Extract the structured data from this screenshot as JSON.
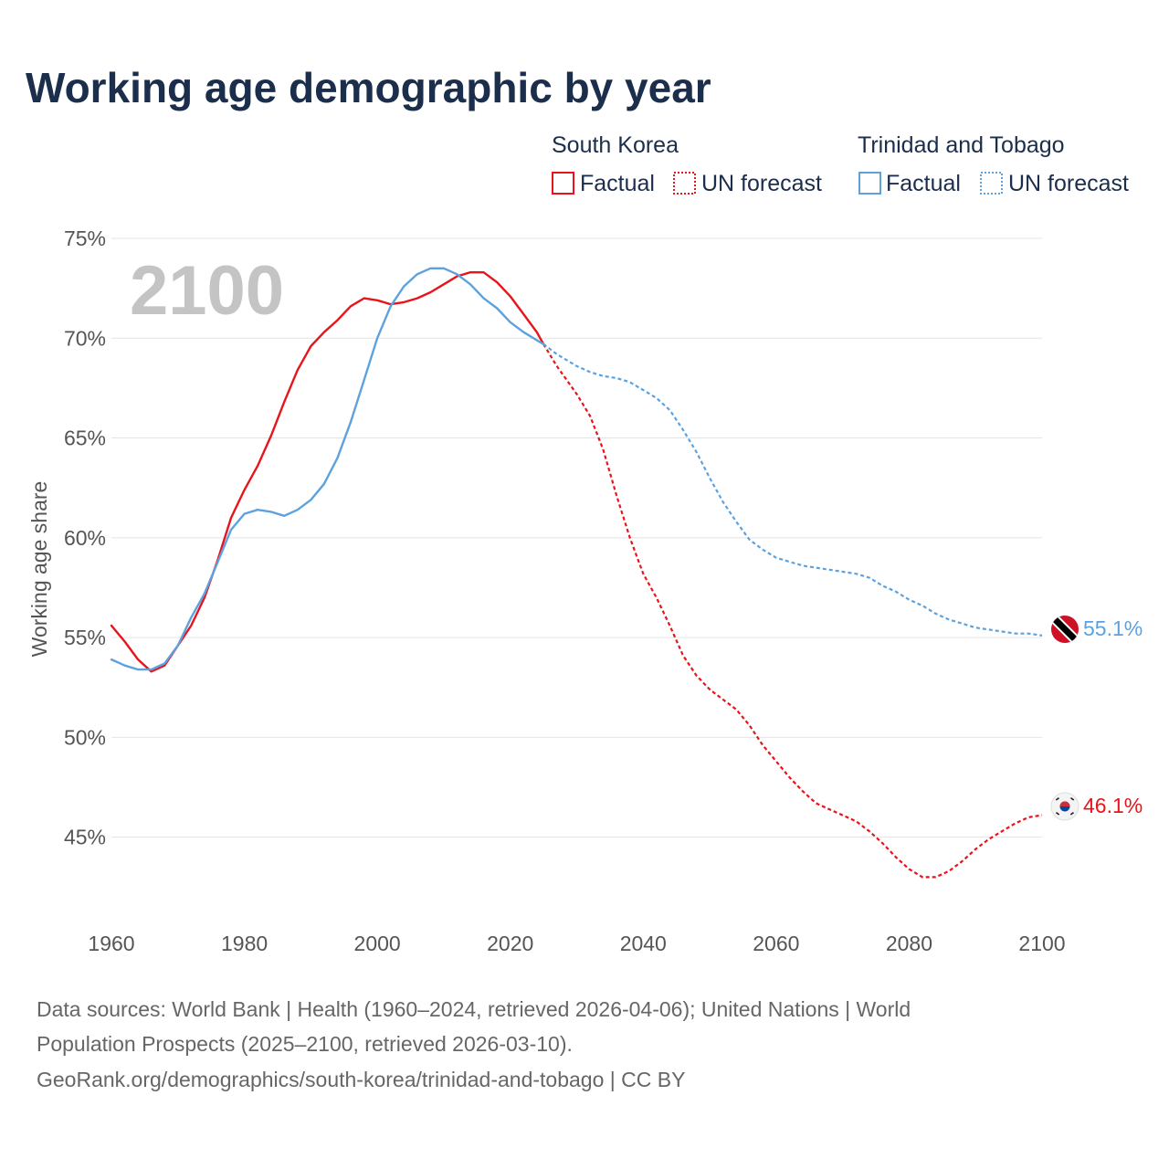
{
  "title": "Working age demographic by year",
  "watermark_year": "2100",
  "legend": {
    "groups": [
      {
        "name": "South Korea",
        "color": "#e8141b",
        "items": [
          "Factual",
          "UN forecast"
        ]
      },
      {
        "name": "Trinidad and Tobago",
        "color": "#5da2df",
        "items": [
          "Factual",
          "UN forecast"
        ]
      }
    ]
  },
  "end_labels": {
    "trinidad": "55.1%",
    "korea": "46.1%"
  },
  "footer": {
    "line1": "Data sources: World Bank | Health (1960–2024, retrieved 2026-04-06); United Nations | World",
    "line2": "Population Prospects (2025–2100, retrieved 2026-03-10).",
    "line3": "GeoRank.org/demographics/south-korea/trinidad-and-tobago | CC BY"
  },
  "chart_data": {
    "type": "line",
    "title": "Working age demographic by year",
    "xlabel": "",
    "ylabel": "Working age share",
    "xlim": [
      1960,
      2100
    ],
    "ylim": [
      40.5,
      75
    ],
    "x_ticks": [
      1960,
      1980,
      2000,
      2020,
      2040,
      2060,
      2080,
      2100
    ],
    "y_ticks": [
      45,
      50,
      55,
      60,
      65,
      70,
      75
    ],
    "y_tick_labels": [
      "45%",
      "50%",
      "55%",
      "60%",
      "65%",
      "70%",
      "75%"
    ],
    "factual_end_year": 2025,
    "series": [
      {
        "name": "South Korea",
        "color": "#e8141b",
        "points": [
          [
            1960,
            55.6
          ],
          [
            1962,
            54.8
          ],
          [
            1964,
            53.9
          ],
          [
            1966,
            53.3
          ],
          [
            1968,
            53.6
          ],
          [
            1970,
            54.6
          ],
          [
            1972,
            55.6
          ],
          [
            1974,
            57.0
          ],
          [
            1976,
            58.9
          ],
          [
            1978,
            61.0
          ],
          [
            1980,
            62.4
          ],
          [
            1982,
            63.6
          ],
          [
            1984,
            65.1
          ],
          [
            1986,
            66.8
          ],
          [
            1988,
            68.4
          ],
          [
            1990,
            69.6
          ],
          [
            1992,
            70.3
          ],
          [
            1994,
            70.9
          ],
          [
            1996,
            71.6
          ],
          [
            1998,
            72.0
          ],
          [
            2000,
            71.9
          ],
          [
            2002,
            71.7
          ],
          [
            2004,
            71.8
          ],
          [
            2006,
            72.0
          ],
          [
            2008,
            72.3
          ],
          [
            2010,
            72.7
          ],
          [
            2012,
            73.1
          ],
          [
            2014,
            73.3
          ],
          [
            2016,
            73.3
          ],
          [
            2018,
            72.8
          ],
          [
            2020,
            72.1
          ],
          [
            2022,
            71.2
          ],
          [
            2024,
            70.3
          ],
          [
            2025,
            69.7
          ],
          [
            2027,
            68.6
          ],
          [
            2030,
            67.2
          ],
          [
            2032,
            66.1
          ],
          [
            2034,
            64.4
          ],
          [
            2036,
            62.1
          ],
          [
            2038,
            60.0
          ],
          [
            2040,
            58.2
          ],
          [
            2042,
            57.0
          ],
          [
            2044,
            55.6
          ],
          [
            2046,
            54.1
          ],
          [
            2048,
            53.1
          ],
          [
            2050,
            52.4
          ],
          [
            2052,
            51.9
          ],
          [
            2054,
            51.4
          ],
          [
            2056,
            50.6
          ],
          [
            2058,
            49.6
          ],
          [
            2060,
            48.8
          ],
          [
            2062,
            48.0
          ],
          [
            2064,
            47.3
          ],
          [
            2066,
            46.7
          ],
          [
            2068,
            46.4
          ],
          [
            2070,
            46.1
          ],
          [
            2072,
            45.8
          ],
          [
            2074,
            45.3
          ],
          [
            2076,
            44.7
          ],
          [
            2078,
            44.0
          ],
          [
            2080,
            43.4
          ],
          [
            2082,
            43.0
          ],
          [
            2084,
            43.0
          ],
          [
            2086,
            43.3
          ],
          [
            2088,
            43.8
          ],
          [
            2090,
            44.4
          ],
          [
            2092,
            44.9
          ],
          [
            2094,
            45.3
          ],
          [
            2096,
            45.7
          ],
          [
            2098,
            46.0
          ],
          [
            2100,
            46.1
          ]
        ]
      },
      {
        "name": "Trinidad and Tobago",
        "color": "#5da2df",
        "points": [
          [
            1960,
            53.9
          ],
          [
            1962,
            53.6
          ],
          [
            1964,
            53.4
          ],
          [
            1966,
            53.4
          ],
          [
            1968,
            53.7
          ],
          [
            1970,
            54.6
          ],
          [
            1972,
            56.0
          ],
          [
            1974,
            57.2
          ],
          [
            1976,
            58.8
          ],
          [
            1978,
            60.4
          ],
          [
            1980,
            61.2
          ],
          [
            1982,
            61.4
          ],
          [
            1984,
            61.3
          ],
          [
            1986,
            61.1
          ],
          [
            1988,
            61.4
          ],
          [
            1990,
            61.9
          ],
          [
            1992,
            62.7
          ],
          [
            1994,
            64.0
          ],
          [
            1996,
            65.8
          ],
          [
            1998,
            67.9
          ],
          [
            2000,
            70.0
          ],
          [
            2002,
            71.6
          ],
          [
            2004,
            72.6
          ],
          [
            2006,
            73.2
          ],
          [
            2008,
            73.5
          ],
          [
            2010,
            73.5
          ],
          [
            2012,
            73.2
          ],
          [
            2014,
            72.7
          ],
          [
            2016,
            72.0
          ],
          [
            2018,
            71.5
          ],
          [
            2020,
            70.8
          ],
          [
            2022,
            70.3
          ],
          [
            2024,
            69.9
          ],
          [
            2025,
            69.7
          ],
          [
            2027,
            69.2
          ],
          [
            2030,
            68.6
          ],
          [
            2032,
            68.3
          ],
          [
            2034,
            68.1
          ],
          [
            2036,
            68.0
          ],
          [
            2038,
            67.8
          ],
          [
            2040,
            67.4
          ],
          [
            2042,
            67.0
          ],
          [
            2044,
            66.4
          ],
          [
            2046,
            65.4
          ],
          [
            2048,
            64.3
          ],
          [
            2050,
            63.0
          ],
          [
            2052,
            61.8
          ],
          [
            2054,
            60.8
          ],
          [
            2056,
            59.9
          ],
          [
            2058,
            59.4
          ],
          [
            2060,
            59.0
          ],
          [
            2062,
            58.8
          ],
          [
            2064,
            58.6
          ],
          [
            2066,
            58.5
          ],
          [
            2068,
            58.4
          ],
          [
            2070,
            58.3
          ],
          [
            2072,
            58.2
          ],
          [
            2074,
            58.0
          ],
          [
            2076,
            57.6
          ],
          [
            2078,
            57.3
          ],
          [
            2080,
            56.9
          ],
          [
            2082,
            56.6
          ],
          [
            2084,
            56.2
          ],
          [
            2086,
            55.9
          ],
          [
            2088,
            55.7
          ],
          [
            2090,
            55.5
          ],
          [
            2092,
            55.4
          ],
          [
            2094,
            55.3
          ],
          [
            2096,
            55.2
          ],
          [
            2098,
            55.2
          ],
          [
            2100,
            55.1
          ]
        ]
      }
    ]
  }
}
